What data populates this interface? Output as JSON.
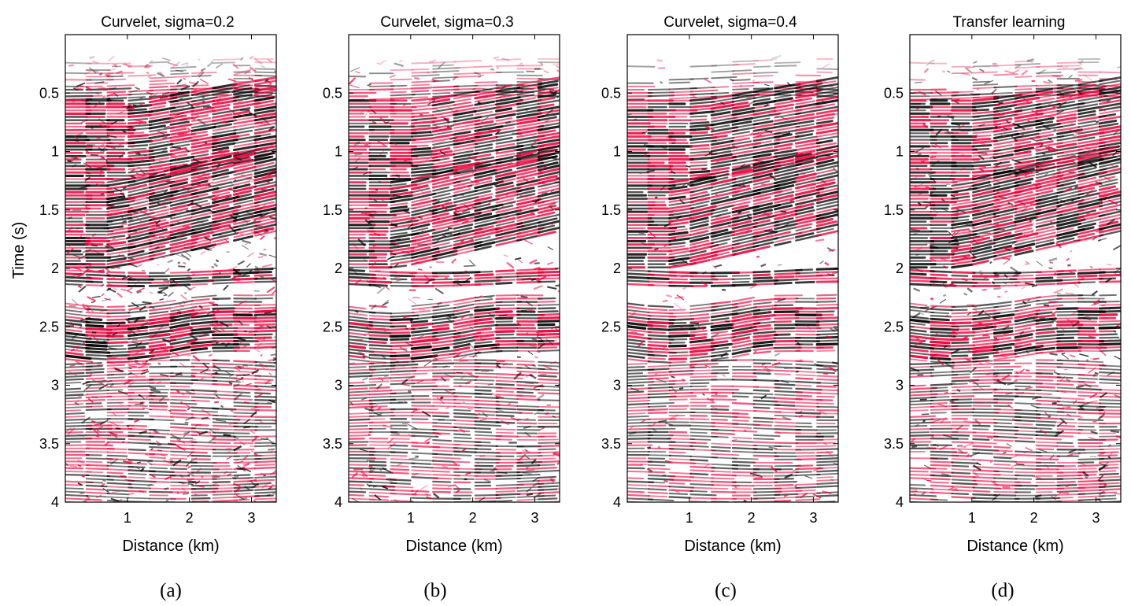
{
  "chart_data": [
    {
      "type": "heatmap",
      "title": "Curvelet, sigma=0.2",
      "xlabel": "Distance (km)",
      "ylabel": "Time (s)",
      "caption": "(a)",
      "xlim": [
        0,
        3.4
      ],
      "ylim": [
        4,
        0
      ],
      "x_ticks": [
        1,
        2,
        3
      ],
      "y_ticks": [
        0.5,
        1,
        1.5,
        2,
        2.5,
        3,
        3.5,
        4
      ],
      "colormap": [
        "#000000",
        "#ffffff",
        "#e8003a"
      ],
      "noise_level": 1.0
    },
    {
      "type": "heatmap",
      "title": "Curvelet, sigma=0.3",
      "xlabel": "Distance (km)",
      "ylabel": "",
      "caption": "(b)",
      "xlim": [
        0,
        3.4
      ],
      "ylim": [
        4,
        0
      ],
      "x_ticks": [
        1,
        2,
        3
      ],
      "y_ticks": [
        0.5,
        1,
        1.5,
        2,
        2.5,
        3,
        3.5,
        4
      ],
      "colormap": [
        "#000000",
        "#ffffff",
        "#e8003a"
      ],
      "noise_level": 0.55
    },
    {
      "type": "heatmap",
      "title": "Curvelet, sigma=0.4",
      "xlabel": "Distance (km)",
      "ylabel": "",
      "caption": "(c)",
      "xlim": [
        0,
        3.4
      ],
      "ylim": [
        4,
        0
      ],
      "x_ticks": [
        1,
        2,
        3
      ],
      "y_ticks": [
        0.5,
        1,
        1.5,
        2,
        2.5,
        3,
        3.5,
        4
      ],
      "colormap": [
        "#000000",
        "#ffffff",
        "#e8003a"
      ],
      "noise_level": 0.25
    },
    {
      "type": "heatmap",
      "title": "Transfer learning",
      "xlabel": "Distance (km)",
      "ylabel": "",
      "caption": "(d)",
      "xlim": [
        0,
        3.4
      ],
      "ylim": [
        4,
        0
      ],
      "x_ticks": [
        1,
        2,
        3
      ],
      "y_ticks": [
        0.5,
        1,
        1.5,
        2,
        2.5,
        3,
        3.5,
        4
      ],
      "colormap": [
        "#000000",
        "#ffffff",
        "#e8003a"
      ],
      "noise_level": 0.65
    }
  ]
}
